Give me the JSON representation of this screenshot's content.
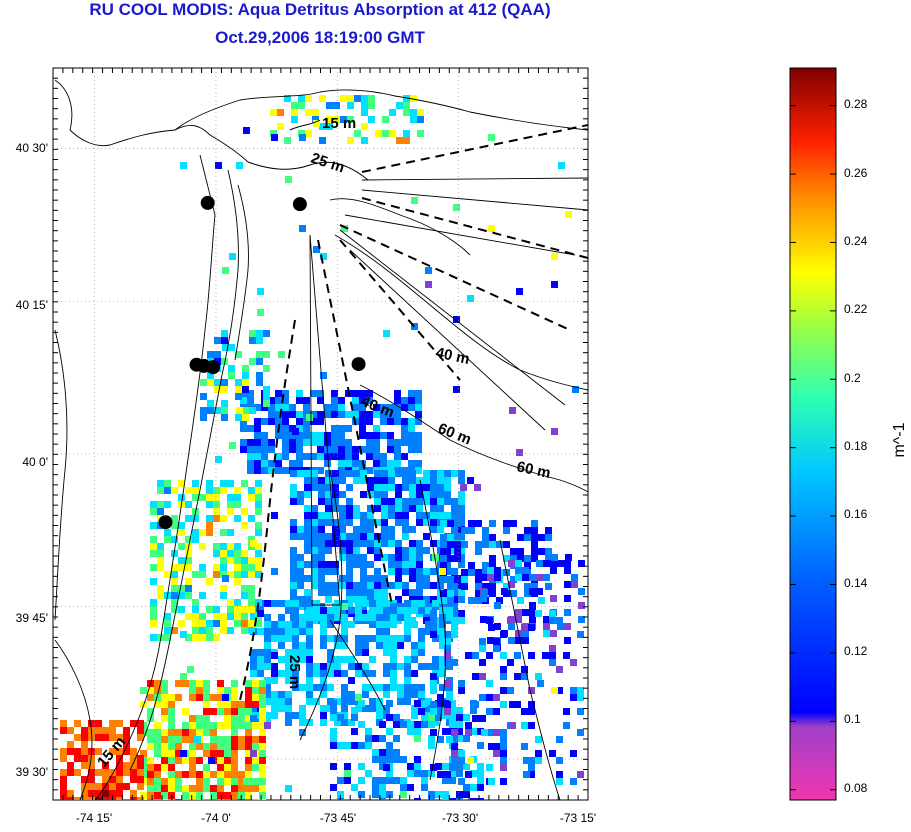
{
  "header": {
    "title": "RU COOL MODIS: Aqua Detritus Absorption at 412 (QAA)",
    "subtitle": "Oct.29,2006 18:19:00 GMT"
  },
  "map": {
    "lon_ticks": [
      "-74 15'",
      "-74 0'",
      "-73 45'",
      "-73 30'",
      "-73 15'"
    ],
    "lat_ticks": [
      "40 30'",
      "40 15'",
      "40 0'",
      "39 45'",
      "39 30'"
    ],
    "contour_labels": [
      "15 m",
      "25 m",
      "40 m",
      "40 m",
      "60 m",
      "60 m",
      "25 m",
      "15 m"
    ],
    "stations": [
      {
        "lon": -74.017,
        "lat": 40.411
      },
      {
        "lon": -73.827,
        "lat": 40.409
      },
      {
        "lon": -74.04,
        "lat": 40.146
      },
      {
        "lon": -74.025,
        "lat": 40.144
      },
      {
        "lon": -74.006,
        "lat": 40.142
      },
      {
        "lon": -73.706,
        "lat": 40.147
      },
      {
        "lon": -74.104,
        "lat": 39.888
      }
    ],
    "land_color": "#ffffff",
    "grid": true
  },
  "colorbar": {
    "label": "m^-1",
    "ticks": [
      "0.28",
      "0.26",
      "0.24",
      "0.22",
      "0.2",
      "0.18",
      "0.16",
      "0.14",
      "0.12",
      "0.1",
      "0.08"
    ],
    "range": [
      0.077,
      0.291
    ],
    "colormap": [
      "#f037b0",
      "#8040d0",
      "#0000ff",
      "#0080ff",
      "#00e0ff",
      "#40ff80",
      "#ffff00",
      "#ff8000",
      "#ff0000",
      "#800000"
    ]
  }
}
